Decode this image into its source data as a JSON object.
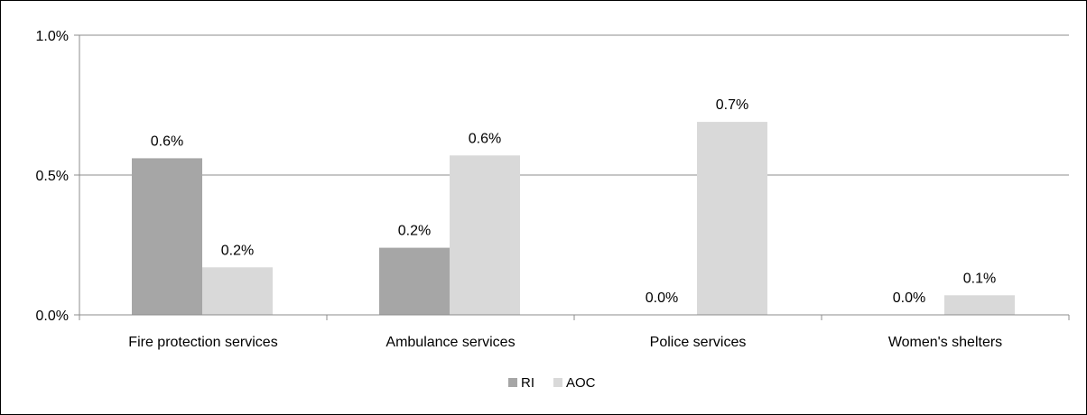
{
  "chart_data": {
    "type": "bar",
    "categories": [
      "Fire protection services",
      "Ambulance services",
      "Police services",
      "Women's shelters"
    ],
    "series": [
      {
        "name": "RI",
        "color": "#a6a6a6",
        "values": [
          0.56,
          0.24,
          0.0,
          0.0
        ],
        "labels": [
          "0.6%",
          "0.2%",
          "0.0%",
          "0.0%"
        ]
      },
      {
        "name": "AOC",
        "color": "#d9d9d9",
        "values": [
          0.17,
          0.57,
          0.69,
          0.07
        ],
        "labels": [
          "0.2%",
          "0.6%",
          "0.7%",
          "0.1%"
        ]
      }
    ],
    "y_ticks": [
      {
        "value": 0.0,
        "label": "0.0%"
      },
      {
        "value": 0.5,
        "label": "0.5%"
      },
      {
        "value": 1.0,
        "label": "1.0%"
      }
    ],
    "ylim": [
      0,
      1.0
    ],
    "grid": true,
    "gridline_color": "#8c8c8c",
    "legend_position": "bottom"
  }
}
